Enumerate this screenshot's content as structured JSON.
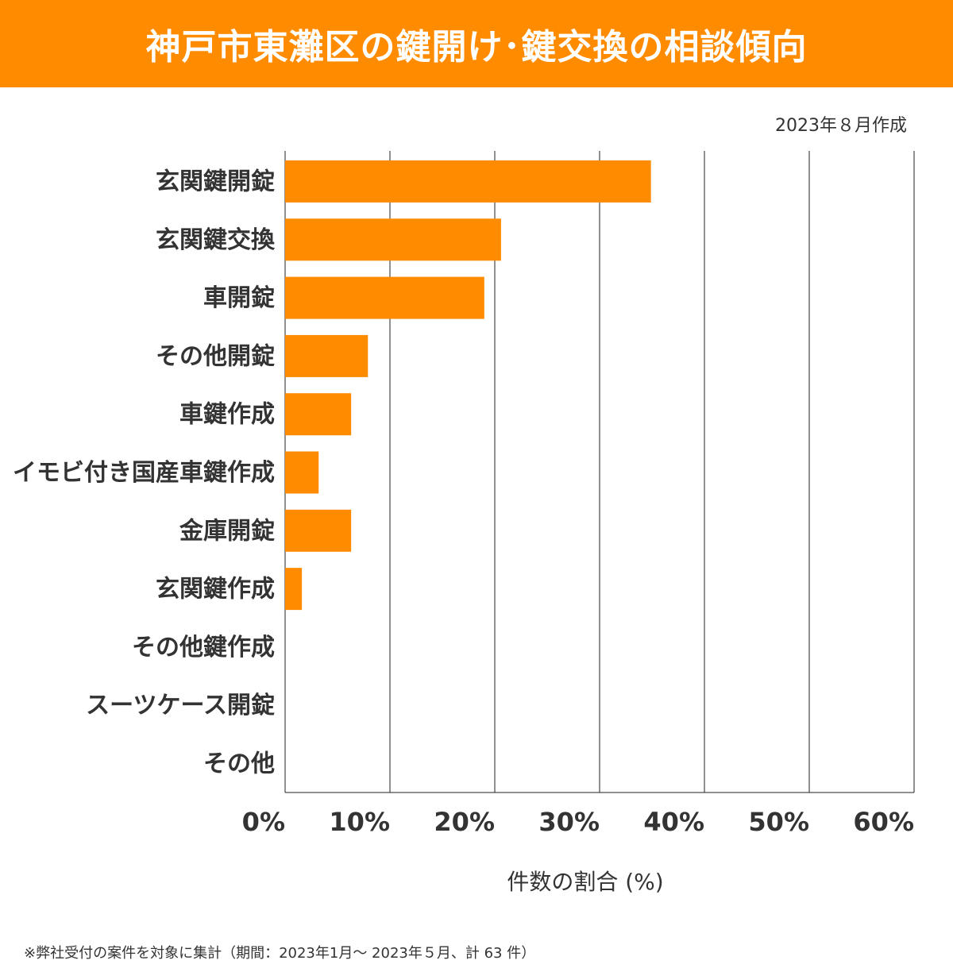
{
  "header": {
    "title": "神戸市東灘区の鍵開け･鍵交換の相談傾向"
  },
  "created": "2023年８月作成",
  "chart_data": {
    "type": "bar",
    "orientation": "horizontal",
    "title": "神戸市東灘区の鍵開け･鍵交換の相談傾向",
    "categories": [
      "玄関鍵開錠",
      "玄関鍵交換",
      "車開錠",
      "その他開錠",
      "車鍵作成",
      "イモビ付き国産車鍵作成",
      "金庫開錠",
      "玄関鍵作成",
      "その他鍵作成",
      "スーツケース開錠",
      "その他"
    ],
    "values": [
      34.9,
      20.6,
      19.0,
      7.9,
      6.3,
      3.2,
      6.3,
      1.6,
      0,
      0,
      0
    ],
    "xlabel": "件数の割合 (%)",
    "ylabel": "",
    "xlim": [
      0,
      60
    ],
    "ticks": [
      0,
      10,
      20,
      30,
      40,
      50,
      60
    ],
    "tick_labels": [
      "0%",
      "10%",
      "20%",
      "30%",
      "40%",
      "50%",
      "60%"
    ],
    "bar_color": "#ff8c00",
    "grid": true
  },
  "footnote": "※弊社受付の案件を対象に集計（期間：2023年1月～ 2023年５月、計 63 件）"
}
